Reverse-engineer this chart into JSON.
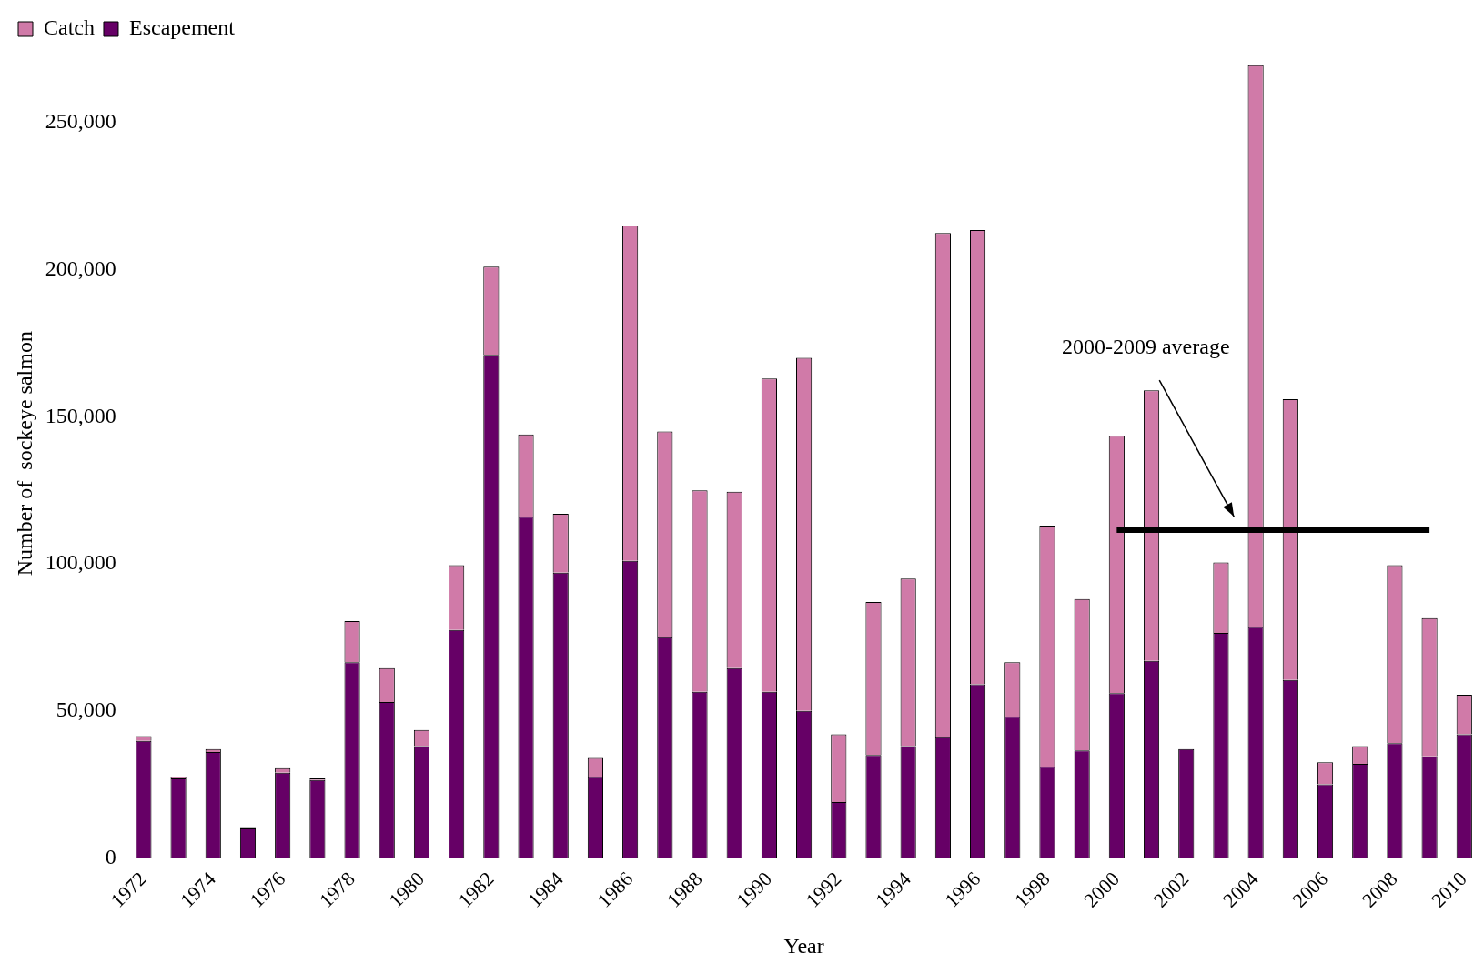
{
  "chart_data": {
    "type": "bar",
    "stacked": true,
    "xlabel": "Year",
    "ylabel": "Number of  sockeye salmon",
    "categories": [
      "1972",
      null,
      "1974",
      null,
      "1976",
      null,
      "1978",
      null,
      "1980",
      null,
      "1982",
      null,
      "1984",
      null,
      "1986",
      null,
      "1988",
      null,
      "1990",
      null,
      "1992",
      null,
      "1994",
      null,
      "1996",
      null,
      "1998",
      null,
      "2000",
      null,
      "2002",
      null,
      "2004",
      null,
      "2006",
      null,
      "2008",
      null,
      "2010"
    ],
    "series": [
      {
        "name": "Escapement",
        "color": "#660066",
        "values": [
          39800,
          27000,
          36000,
          10000,
          29000,
          26500,
          66500,
          53000,
          38000,
          77500,
          171000,
          116000,
          97000,
          27500,
          101000,
          75000,
          56500,
          64500,
          56500,
          50000,
          19000,
          35000,
          38000,
          41000,
          59000,
          48000,
          31000,
          36500,
          56000,
          67000,
          37000,
          76500,
          78500,
          60500,
          25000,
          32000,
          39000,
          34500,
          42000
        ]
      },
      {
        "name": "Catch",
        "color": "#d07aa8",
        "values": [
          1600,
          500,
          1000,
          500,
          1500,
          500,
          14000,
          11500,
          5500,
          22000,
          30000,
          28000,
          20000,
          6500,
          114000,
          70000,
          68500,
          60000,
          106500,
          120000,
          23000,
          52000,
          57000,
          171500,
          154500,
          18500,
          82000,
          51500,
          87500,
          92000,
          0,
          24000,
          191000,
          95500,
          7500,
          6000,
          60500,
          47000,
          13500
        ]
      },
      {
        "type": "line",
        "color": "#000000",
        "values": [
          null,
          null,
          null,
          null,
          null,
          null,
          null,
          null,
          null,
          null,
          null,
          null,
          null,
          null,
          null,
          null,
          null,
          null,
          null,
          null,
          null,
          null,
          null,
          null,
          null,
          null,
          null,
          null,
          111400,
          111400,
          111400,
          111400,
          111400,
          111400,
          111400,
          111400,
          111400,
          111400,
          null
        ]
      }
    ],
    "ylim": [
      0,
      275000
    ],
    "yticks": [
      0,
      {
        "value": 50000,
        "label": "50,000"
      },
      {
        "value": 100000,
        "label": "100,000"
      },
      {
        "value": 150000,
        "label": "150,000"
      },
      {
        "value": 200000,
        "label": "200,000"
      },
      {
        "value": 250000,
        "label": "250,000"
      }
    ],
    "grid": false,
    "legend": "top left",
    "annotations": [
      "2000-2009 average"
    ]
  }
}
